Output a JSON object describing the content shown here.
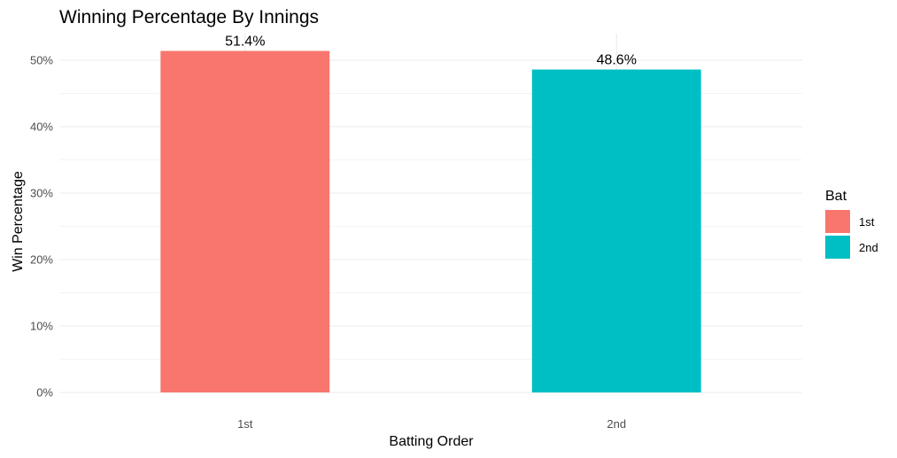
{
  "chart_data": {
    "type": "bar",
    "title": "Winning Percentage By Innings",
    "xlabel": "Batting Order",
    "ylabel": "Win Percentage",
    "categories": [
      "1st",
      "2nd"
    ],
    "values": [
      51.4,
      48.6
    ],
    "data_labels": [
      "51.4%",
      "48.6%"
    ],
    "colors": [
      "#F8766D",
      "#00BFC4"
    ],
    "y_ticks": [
      0,
      10,
      20,
      30,
      40,
      50
    ],
    "y_tick_labels": [
      "0%",
      "10%",
      "20%",
      "30%",
      "40%",
      "50%"
    ],
    "ylim": [
      0,
      54
    ],
    "grid": true,
    "legend": {
      "title": "Bat",
      "position": "right",
      "items": [
        {
          "label": "1st",
          "color": "#F8766D"
        },
        {
          "label": "2nd",
          "color": "#00BFC4"
        }
      ]
    }
  }
}
